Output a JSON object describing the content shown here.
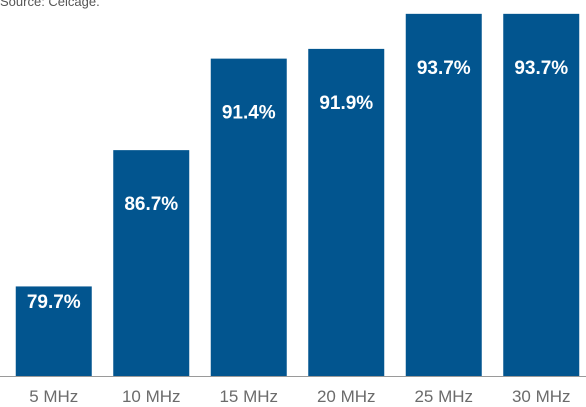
{
  "source_note": "Source: Celcage.",
  "chart_data": {
    "type": "bar",
    "categories": [
      "5 MHz",
      "10 MHz",
      "15 MHz",
      "20 MHz",
      "25 MHz",
      "30 MHz"
    ],
    "values": [
      79.7,
      86.7,
      91.4,
      91.9,
      93.7,
      93.7
    ],
    "data_labels": [
      "79.7%",
      "86.7%",
      "91.4%",
      "91.9%",
      "93.7%",
      "93.7%"
    ],
    "title": "",
    "xlabel": "",
    "ylabel": "",
    "ylim": [
      75.1,
      94.0
    ],
    "grid": false,
    "bar_color": "#02558f",
    "label_color": "#ffffff",
    "tick_color": "#6b6b6b"
  }
}
